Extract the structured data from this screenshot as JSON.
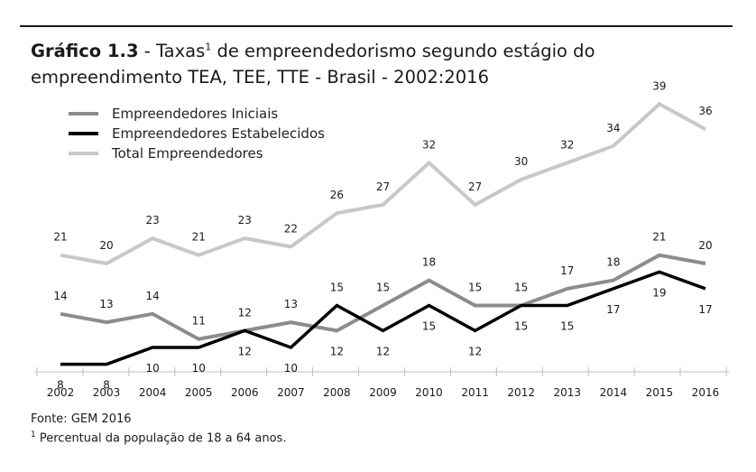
{
  "title": {
    "prefix": "Gráfico 1.3",
    "separator": " - ",
    "text_before_sup": "Taxas",
    "sup": "1",
    "text_after_sup": " de empreendedorismo segundo estágio do empreendimento TEA, TEE, TTE - Brasil - 2002:2016"
  },
  "footer": {
    "source": "Fonte: GEM 2016",
    "note_marker": "1",
    "note_text": " Percentual da população de 18 a 64 anos."
  },
  "chart_data": {
    "type": "line",
    "x": [
      "2002",
      "2003",
      "2004",
      "2005",
      "2006",
      "2007",
      "2008",
      "2009",
      "2010",
      "2011",
      "2012",
      "2013",
      "2014",
      "2015",
      "2016"
    ],
    "ylim": [
      0,
      45
    ],
    "grid": false,
    "legend_position": "top-left",
    "xlabel": "",
    "ylabel": "",
    "series": [
      {
        "name": "Empreendedores Iniciais",
        "color": "#8c8c8c",
        "values": [
          14,
          13,
          14,
          11,
          12,
          13,
          12,
          15,
          18,
          15,
          15,
          17,
          18,
          21,
          20
        ],
        "label_pos": [
          "above",
          "above",
          "above",
          "above",
          "above",
          "above",
          "below",
          "above",
          "above",
          "above",
          "above",
          "above",
          "above",
          "above",
          "above"
        ]
      },
      {
        "name": "Empreendedores Estabelecidos",
        "color": "#000000",
        "values": [
          8,
          8,
          10,
          10,
          12,
          10,
          15,
          12,
          15,
          12,
          15,
          15,
          17,
          19,
          17
        ],
        "label_pos": [
          "below",
          "below",
          "below",
          "below",
          "below",
          "below",
          "above",
          "below",
          "below",
          "below",
          "below",
          "below",
          "below",
          "below",
          "below"
        ]
      },
      {
        "name": "Total Empreendedores",
        "color": "#c8c8c8",
        "values": [
          21,
          20,
          23,
          21,
          23,
          22,
          26,
          27,
          32,
          27,
          30,
          32,
          34,
          39,
          36
        ],
        "label_pos": [
          "above",
          "above",
          "above",
          "above",
          "above",
          "above",
          "above",
          "above",
          "above",
          "above",
          "above",
          "above",
          "above",
          "above",
          "above"
        ]
      }
    ]
  }
}
